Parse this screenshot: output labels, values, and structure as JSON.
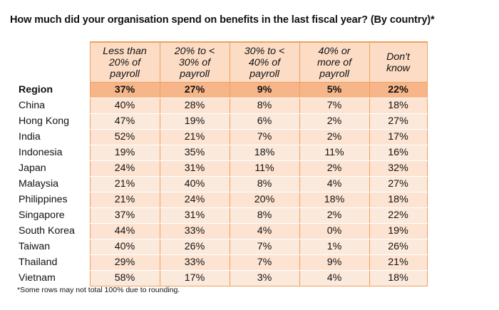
{
  "chart_data": {
    "type": "table",
    "title": "How much did your organisation spend on benefits in the last fiscal year? (By country)*",
    "columns": [
      [
        "Less than",
        "20% of",
        "payroll"
      ],
      [
        "20% to <",
        "30% of",
        "payroll"
      ],
      [
        "30% to <",
        "40% of",
        "payroll"
      ],
      [
        "40% or",
        "more of",
        "payroll"
      ],
      [
        "Don't",
        "know"
      ]
    ],
    "rows": [
      {
        "label": "Region",
        "values": [
          "37%",
          "27%",
          "9%",
          "5%",
          "22%"
        ]
      },
      {
        "label": "China",
        "values": [
          "40%",
          "28%",
          "8%",
          "7%",
          "18%"
        ]
      },
      {
        "label": "Hong Kong",
        "values": [
          "47%",
          "19%",
          "6%",
          "2%",
          "27%"
        ]
      },
      {
        "label": "India",
        "values": [
          "52%",
          "21%",
          "7%",
          "2%",
          "17%"
        ]
      },
      {
        "label": "Indonesia",
        "values": [
          "19%",
          "35%",
          "18%",
          "11%",
          "16%"
        ]
      },
      {
        "label": "Japan",
        "values": [
          "24%",
          "31%",
          "11%",
          "2%",
          "32%"
        ]
      },
      {
        "label": "Malaysia",
        "values": [
          "21%",
          "40%",
          "8%",
          "4%",
          "27%"
        ]
      },
      {
        "label": "Philippines",
        "values": [
          "21%",
          "24%",
          "20%",
          "18%",
          "18%"
        ]
      },
      {
        "label": "Singapore",
        "values": [
          "37%",
          "31%",
          "8%",
          "2%",
          "22%"
        ]
      },
      {
        "label": "South Korea",
        "values": [
          "44%",
          "33%",
          "4%",
          "0%",
          "19%"
        ]
      },
      {
        "label": "Taiwan",
        "values": [
          "40%",
          "26%",
          "7%",
          "1%",
          "26%"
        ]
      },
      {
        "label": "Thailand",
        "values": [
          "29%",
          "33%",
          "7%",
          "9%",
          "21%"
        ]
      },
      {
        "label": "Vietnam",
        "values": [
          "58%",
          "17%",
          "3%",
          "4%",
          "18%"
        ]
      }
    ],
    "footnote": "*Some rows may not total 100% due to rounding."
  },
  "colors": {
    "header_fill": "#fcdcc5",
    "region_fill": "#f7b68a",
    "row_fill": "#fde3d1",
    "row_alt_fill": "#fbe9db",
    "border": "#f0a05a"
  }
}
